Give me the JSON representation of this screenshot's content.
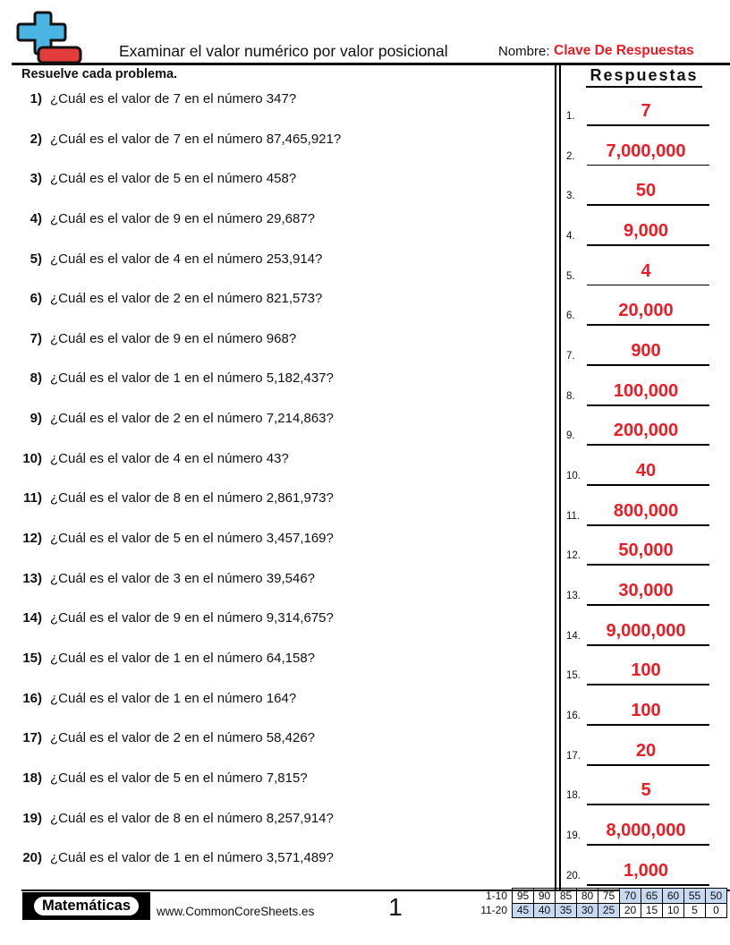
{
  "page": {
    "accent_red": "#ED1C24",
    "logo_blue": "#4AB5E3",
    "logo_red": "#E23C3C",
    "highlight_blue": "#C6D9F1"
  },
  "header": {
    "title": "Examinar el valor numérico por valor posicional",
    "name_label": "Nombre:",
    "name_value": "Clave De Respuestas"
  },
  "instruction": "Resuelve cada problema.",
  "answers_panel": {
    "title": "Respuestas"
  },
  "questions": [
    {
      "num": "1)",
      "text": "¿Cuál es el valor de 7 en el número 347?"
    },
    {
      "num": "2)",
      "text": "¿Cuál es el valor de 7 en el número 87,465,921?"
    },
    {
      "num": "3)",
      "text": "¿Cuál es el valor de 5 en el número 458?"
    },
    {
      "num": "4)",
      "text": "¿Cuál es el valor de 9 en el número 29,687?"
    },
    {
      "num": "5)",
      "text": "¿Cuál es el valor de 4 en el número 253,914?"
    },
    {
      "num": "6)",
      "text": "¿Cuál es el valor de 2 en el número 821,573?"
    },
    {
      "num": "7)",
      "text": "¿Cuál es el valor de 9 en el número 968?"
    },
    {
      "num": "8)",
      "text": "¿Cuál es el valor de 1 en el número 5,182,437?"
    },
    {
      "num": "9)",
      "text": "¿Cuál es el valor de 2 en el número 7,214,863?"
    },
    {
      "num": "10)",
      "text": "¿Cuál es el valor de 4 en el número 43?"
    },
    {
      "num": "11)",
      "text": "¿Cuál es el valor de 8 en el número 2,861,973?"
    },
    {
      "num": "12)",
      "text": "¿Cuál es el valor de 5 en el número 3,457,169?"
    },
    {
      "num": "13)",
      "text": "¿Cuál es el valor de 3 en el número 39,546?"
    },
    {
      "num": "14)",
      "text": "¿Cuál es el valor de 9 en el número 9,314,675?"
    },
    {
      "num": "15)",
      "text": "¿Cuál es el valor de 1 en el número 64,158?"
    },
    {
      "num": "16)",
      "text": "¿Cuál es el valor de 1 en el número 164?"
    },
    {
      "num": "17)",
      "text": "¿Cuál es el valor de 2 en el número 58,426?"
    },
    {
      "num": "18)",
      "text": "¿Cuál es el valor de 5 en el número 7,815?"
    },
    {
      "num": "19)",
      "text": "¿Cuál es el valor de 8 en el número 8,257,914?"
    },
    {
      "num": "20)",
      "text": "¿Cuál es el valor de 1 en el número 3,571,489?"
    }
  ],
  "answers": [
    {
      "num": "1.",
      "value": "7"
    },
    {
      "num": "2.",
      "value": "7,000,000"
    },
    {
      "num": "3.",
      "value": "50"
    },
    {
      "num": "4.",
      "value": "9,000"
    },
    {
      "num": "5.",
      "value": "4"
    },
    {
      "num": "6.",
      "value": "20,000"
    },
    {
      "num": "7.",
      "value": "900"
    },
    {
      "num": "8.",
      "value": "100,000"
    },
    {
      "num": "9.",
      "value": "200,000"
    },
    {
      "num": "10.",
      "value": "40"
    },
    {
      "num": "11.",
      "value": "800,000"
    },
    {
      "num": "12.",
      "value": "50,000"
    },
    {
      "num": "13.",
      "value": "30,000"
    },
    {
      "num": "14.",
      "value": "9,000,000"
    },
    {
      "num": "15.",
      "value": "100"
    },
    {
      "num": "16.",
      "value": "100"
    },
    {
      "num": "17.",
      "value": "20"
    },
    {
      "num": "18.",
      "value": "5"
    },
    {
      "num": "19.",
      "value": "8,000,000"
    },
    {
      "num": "20.",
      "value": "1,000"
    }
  ],
  "footer": {
    "brand": "Matemáticas",
    "website": "www.CommonCoreSheets.es",
    "page_number": "1",
    "grading_rows": [
      {
        "label": "1-10",
        "cells": [
          {
            "v": "95",
            "hl": false
          },
          {
            "v": "90",
            "hl": false
          },
          {
            "v": "85",
            "hl": false
          },
          {
            "v": "80",
            "hl": false
          },
          {
            "v": "75",
            "hl": false
          },
          {
            "v": "70",
            "hl": true
          },
          {
            "v": "65",
            "hl": true
          },
          {
            "v": "60",
            "hl": true
          },
          {
            "v": "55",
            "hl": true
          },
          {
            "v": "50",
            "hl": true
          }
        ]
      },
      {
        "label": "11-20",
        "cells": [
          {
            "v": "45",
            "hl": true
          },
          {
            "v": "40",
            "hl": true
          },
          {
            "v": "35",
            "hl": true
          },
          {
            "v": "30",
            "hl": true
          },
          {
            "v": "25",
            "hl": true
          },
          {
            "v": "20",
            "hl": false
          },
          {
            "v": "15",
            "hl": false
          },
          {
            "v": "10",
            "hl": false
          },
          {
            "v": "5",
            "hl": false
          },
          {
            "v": "0",
            "hl": false
          }
        ]
      }
    ]
  }
}
